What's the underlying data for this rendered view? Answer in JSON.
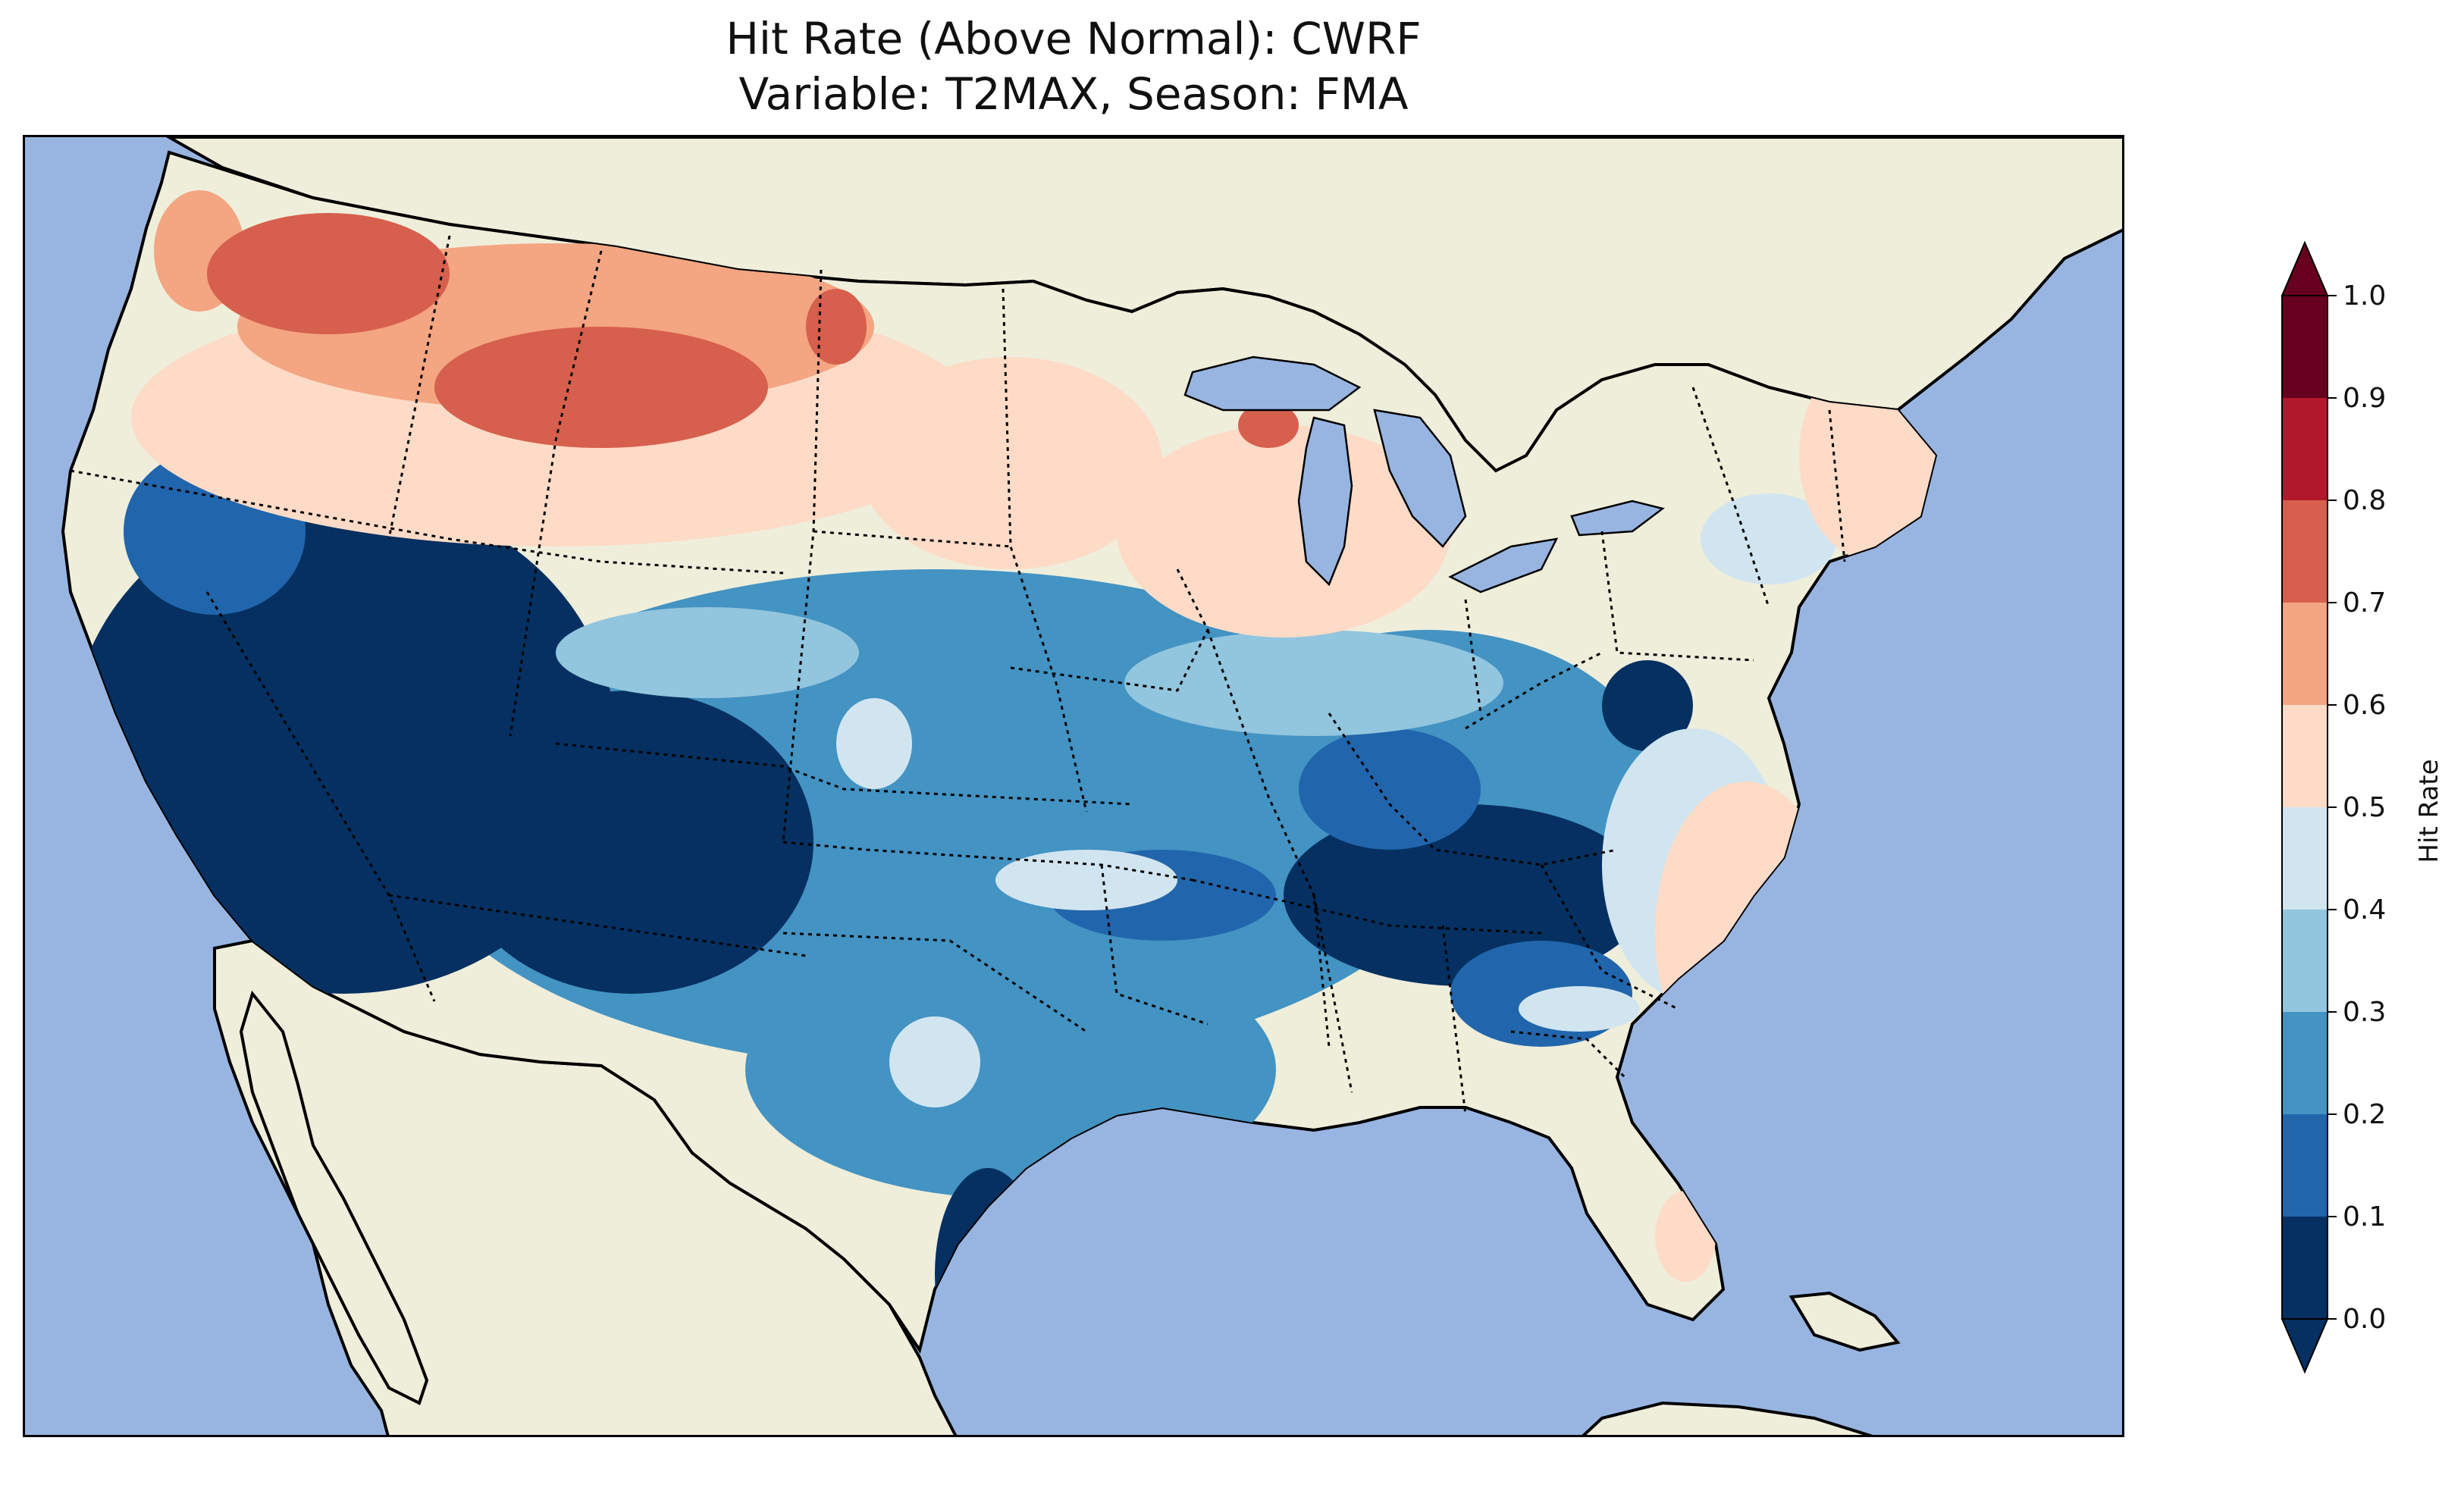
{
  "title": {
    "line1": "Hit Rate (Above Normal): CWRF",
    "line2": "Variable: T2MAX, Season: FMA"
  },
  "map": {
    "region": "Continental United States",
    "ocean_color": "#98b5e2",
    "land_color": "#efeedb",
    "lakes_color": "#98b5e2",
    "coastline_color": "#000000",
    "state_borders": "dotted"
  },
  "colorbar": {
    "label": "Hit Rate",
    "ticks": [
      "0.0",
      "0.1",
      "0.2",
      "0.3",
      "0.4",
      "0.5",
      "0.6",
      "0.7",
      "0.8",
      "0.9",
      "1.0"
    ],
    "bins": [
      {
        "from": 0.0,
        "to": 0.1,
        "color": "#053061"
      },
      {
        "from": 0.1,
        "to": 0.2,
        "color": "#2166ac"
      },
      {
        "from": 0.2,
        "to": 0.3,
        "color": "#4393c3"
      },
      {
        "from": 0.3,
        "to": 0.4,
        "color": "#92c5de"
      },
      {
        "from": 0.4,
        "to": 0.5,
        "color": "#d1e5f0"
      },
      {
        "from": 0.5,
        "to": 0.6,
        "color": "#fddbc7"
      },
      {
        "from": 0.6,
        "to": 0.7,
        "color": "#f4a582"
      },
      {
        "from": 0.7,
        "to": 0.8,
        "color": "#d6604d"
      },
      {
        "from": 0.8,
        "to": 0.9,
        "color": "#b2182b"
      },
      {
        "from": 0.9,
        "to": 1.0,
        "color": "#67001f"
      }
    ],
    "extend_low_color": "#053061",
    "extend_high_color": "#67001f"
  }
}
